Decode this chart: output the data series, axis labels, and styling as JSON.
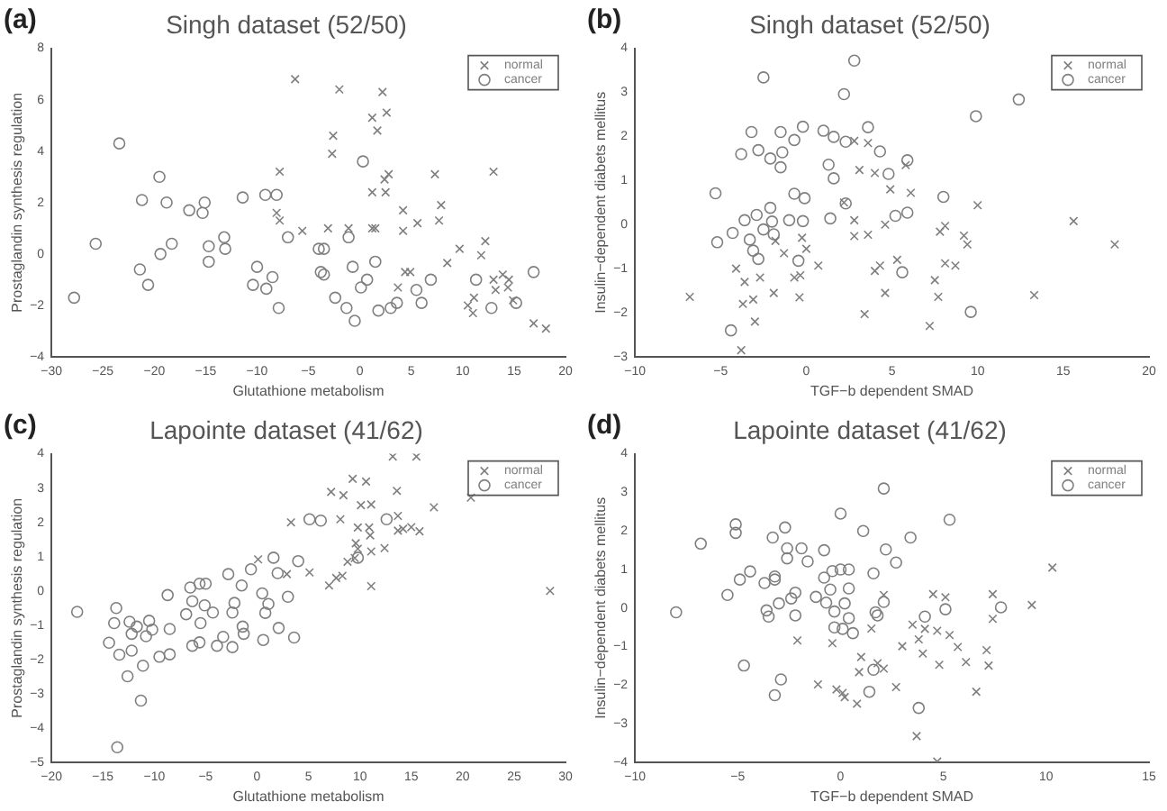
{
  "chart_data": [
    {
      "type": "scatter",
      "title": "Singh dataset (52/50)",
      "xlabel": "Glutathione metabolism",
      "ylabel": "Prostaglandin synthesis regulation",
      "annotations": [
        "(a)"
      ],
      "xlim": [
        -30,
        20
      ],
      "xticks": [
        -30,
        -25,
        -20,
        -15,
        -10,
        -5,
        0,
        5,
        10,
        15,
        20
      ],
      "ylim": [
        -4,
        8
      ],
      "yticks": [
        -4,
        -2,
        0,
        2,
        4,
        6,
        8
      ],
      "legend": "top right",
      "grid": false,
      "series": [
        {
          "name": "normal",
          "color": "#7f7f7f",
          "marker": "cross",
          "x": [
            -6.3,
            -2.0,
            2.2,
            1.2,
            2.6,
            1.7,
            -2.6,
            -2.7,
            -7.8,
            2.8,
            2.4,
            7.3,
            13.0,
            1.2,
            2.5,
            -8.1,
            -7.8,
            -5.6,
            -3.1,
            -1.1,
            1.2,
            1.5,
            4.2,
            4.2,
            5.6,
            7.9,
            7.7,
            9.7,
            12.2,
            11.8,
            8.5,
            4.4,
            4.9,
            3.7,
            13.9,
            13.0,
            14.5,
            13.2,
            14.4,
            14.9,
            10.5,
            11.1,
            11.0,
            16.9,
            18.1
          ],
          "values": [
            6.8,
            6.4,
            6.3,
            5.3,
            5.5,
            4.8,
            4.6,
            3.9,
            3.2,
            3.1,
            2.9,
            3.1,
            3.2,
            2.4,
            2.4,
            1.6,
            1.3,
            0.9,
            1.0,
            1.0,
            1.0,
            1.0,
            1.7,
            0.9,
            1.2,
            1.9,
            1.3,
            0.2,
            0.5,
            -0.05,
            -0.35,
            -0.7,
            -0.7,
            -1.3,
            -0.8,
            -1.0,
            -1.0,
            -1.4,
            -1.3,
            -1.8,
            -2.0,
            -1.7,
            -2.3,
            -2.7,
            -2.9
          ]
        },
        {
          "name": "cancer",
          "color": "#7f7f7f",
          "marker": "circle",
          "x": [
            -27.8,
            -25.7,
            -23.4,
            -21.4,
            -21.2,
            -20.6,
            -19.5,
            -18.8,
            -19.4,
            -18.3,
            -16.6,
            -15.1,
            -15.3,
            -14.7,
            -14.7,
            -13.2,
            -13.1,
            -11.4,
            -10.4,
            -10.0,
            -9.2,
            -9.1,
            -8.5,
            -8.1,
            -7.9,
            -7.0,
            -4.0,
            -3.5,
            -3.8,
            -3.5,
            -2.4,
            -1.3,
            -1.1,
            -0.7,
            -0.5,
            0.1,
            0.7,
            0.3,
            1.5,
            1.8,
            3.0,
            3.6,
            5.5,
            6.0,
            6.9,
            11.3,
            12.8,
            15.2,
            16.9
          ],
          "values": [
            -1.7,
            0.4,
            4.3,
            -0.6,
            2.1,
            -1.2,
            3.0,
            2.0,
            0.0,
            0.4,
            1.7,
            2.0,
            1.6,
            0.3,
            -0.3,
            0.65,
            0.2,
            2.2,
            -1.2,
            -0.5,
            2.3,
            -1.35,
            -0.9,
            2.3,
            -2.1,
            0.65,
            0.2,
            0.2,
            -0.7,
            -0.8,
            -1.7,
            -2.1,
            0.65,
            -0.5,
            -2.6,
            -1.3,
            -1.0,
            3.6,
            -0.3,
            -2.2,
            -2.1,
            -1.9,
            -1.4,
            -1.9,
            -1.0,
            -1.0,
            -2.1,
            -1.9,
            -0.7
          ]
        }
      ]
    },
    {
      "type": "scatter",
      "title": "Singh dataset (52/50)",
      "xlabel": "TGF−b dependent SMAD",
      "ylabel": "Insulin−dependent diabets mellitus",
      "annotations": [
        "(b)"
      ],
      "xlim": [
        -10,
        20
      ],
      "xticks": [
        -10,
        -5,
        0,
        5,
        10,
        15,
        20
      ],
      "ylim": [
        -3,
        4
      ],
      "yticks": [
        -3,
        -2,
        -1,
        0,
        1,
        2,
        3,
        4
      ],
      "legend": "top right",
      "grid": false,
      "series": [
        {
          "name": "normal",
          "color": "#7f7f7f",
          "marker": "cross",
          "x": [
            -6.8,
            -4.1,
            -3.6,
            -3.7,
            -3.8,
            -3.1,
            -3.0,
            -2.7,
            -1.9,
            -1.8,
            -1.3,
            -0.7,
            -0.35,
            -0.25,
            0.0,
            -0.4,
            0.7,
            2.2,
            2.8,
            2.8,
            2.8,
            3.1,
            3.6,
            3.4,
            3.6,
            4.0,
            4.0,
            4.3,
            4.6,
            4.6,
            4.9,
            5.3,
            5.8,
            6.1,
            7.2,
            7.5,
            7.7,
            7.8,
            8.1,
            8.1,
            8.7,
            9.2,
            9.4,
            10.0,
            13.3,
            15.6,
            18.0
          ],
          "values": [
            -1.64,
            -1.0,
            -1.3,
            -1.8,
            -2.85,
            -1.7,
            -2.2,
            -1.2,
            -1.55,
            -0.37,
            -0.65,
            -1.2,
            -1.15,
            -0.3,
            -0.55,
            -1.65,
            -0.93,
            0.5,
            0.1,
            -0.26,
            1.9,
            1.24,
            -0.23,
            -2.03,
            1.85,
            1.17,
            -1.05,
            -0.93,
            0.0,
            -1.55,
            0.8,
            -0.8,
            1.35,
            0.72,
            -2.3,
            -1.26,
            -1.64,
            -0.16,
            -0.03,
            -0.88,
            -0.93,
            -0.25,
            -0.45,
            0.44,
            -1.6,
            0.08,
            -0.45
          ]
        },
        {
          "name": "cancer",
          "color": "#7f7f7f",
          "marker": "circle",
          "x": [
            -5.3,
            -5.2,
            -4.3,
            -4.4,
            -3.8,
            -3.6,
            -3.2,
            -3.3,
            -3.1,
            -2.8,
            -2.8,
            -2.9,
            -2.5,
            -2.5,
            -2.1,
            -2.1,
            -2.0,
            -1.9,
            -1.5,
            -1.4,
            -1.5,
            -1.0,
            -0.7,
            -0.7,
            -0.46,
            -0.2,
            -0.2,
            -0.1,
            1.0,
            1.3,
            1.6,
            1.6,
            1.4,
            2.2,
            2.3,
            2.3,
            2.8,
            3.6,
            4.3,
            4.8,
            5.2,
            5.6,
            5.9,
            5.9,
            8.0,
            9.6,
            9.9,
            12.4
          ],
          "values": [
            0.71,
            -0.4,
            -0.19,
            -2.4,
            1.6,
            0.1,
            2.1,
            -0.34,
            -0.59,
            -0.78,
            1.69,
            0.22,
            3.34,
            -0.11,
            1.5,
            0.38,
            0.07,
            -0.22,
            2.1,
            1.64,
            1.3,
            0.1,
            1.92,
            0.7,
            -0.82,
            0.08,
            2.22,
            0.6,
            2.13,
            1.36,
            1.99,
            1.05,
            0.14,
            2.96,
            0.48,
            1.88,
            3.72,
            2.21,
            1.66,
            1.15,
            0.2,
            -1.08,
            0.27,
            1.46,
            0.63,
            -1.98,
            2.46,
            2.84
          ]
        }
      ]
    },
    {
      "type": "scatter",
      "title": "Lapointe dataset (41/62)",
      "xlabel": "Glutathione metabolism",
      "ylabel": "Prostaglandin synthesis regulation",
      "annotations": [
        "(c)"
      ],
      "xlim": [
        -20,
        30
      ],
      "xticks": [
        -20,
        -15,
        -10,
        -5,
        0,
        5,
        10,
        15,
        20,
        25,
        30
      ],
      "ylim": [
        -5,
        4
      ],
      "yticks": [
        -5,
        -4,
        -3,
        -2,
        -1,
        0,
        1,
        2,
        3,
        4
      ],
      "legend": "top right",
      "grid": false,
      "series": [
        {
          "name": "normal",
          "color": "#7f7f7f",
          "marker": "cross",
          "x": [
            0.1,
            2.9,
            3.3,
            5.1,
            7.0,
            7.2,
            7.7,
            8.3,
            8.4,
            8.8,
            8.1,
            9.3,
            9.5,
            9.6,
            9.8,
            9.8,
            10.1,
            10.6,
            10.9,
            11.0,
            11.1,
            11.1,
            11.1,
            12.4,
            13.2,
            13.6,
            13.7,
            13.7,
            14.2,
            15.0,
            15.5,
            15.8,
            17.2,
            20.8,
            28.5
          ],
          "values": [
            0.92,
            0.49,
            2.0,
            0.54,
            0.16,
            2.89,
            0.38,
            0.44,
            2.79,
            0.85,
            2.09,
            3.27,
            0.96,
            1.39,
            1.85,
            1.23,
            2.5,
            3.19,
            1.85,
            1.62,
            2.52,
            1.15,
            0.14,
            1.25,
            3.92,
            2.92,
            2.19,
            1.76,
            1.81,
            1.86,
            3.92,
            1.74,
            2.44,
            2.72,
            0.0
          ]
        },
        {
          "name": "cancer",
          "color": "#7f7f7f",
          "marker": "circle",
          "x": [
            -17.5,
            -14.4,
            -13.9,
            -13.7,
            -13.4,
            -13.6,
            -12.6,
            -12.4,
            -12.2,
            -12.2,
            -11.7,
            -11.3,
            -11.1,
            -10.8,
            -10.5,
            -10.2,
            -9.5,
            -8.5,
            -8.7,
            -8.5,
            -6.9,
            -6.5,
            -6.3,
            -6.3,
            -5.6,
            -5.6,
            -5.5,
            -5.1,
            -5.0,
            -4.3,
            -3.9,
            -3.3,
            -2.8,
            -2.4,
            -2.4,
            -2.2,
            -1.5,
            -1.4,
            -1.3,
            -0.6,
            0.5,
            0.6,
            0.8,
            1.1,
            1.6,
            2.0,
            2.1,
            3.0,
            3.6,
            4.0,
            5.1,
            6.2,
            12.6,
            9.8
          ],
          "values": [
            -0.61,
            -1.51,
            -0.94,
            -0.5,
            -1.86,
            -4.56,
            -2.49,
            -0.9,
            -1.25,
            -1.74,
            -1.04,
            -3.2,
            -2.18,
            -1.32,
            -0.87,
            -1.13,
            -1.92,
            -1.85,
            -0.12,
            -1.11,
            -0.68,
            0.1,
            -1.6,
            -0.3,
            0.21,
            -1.5,
            -0.94,
            -0.42,
            0.21,
            -0.63,
            -1.6,
            -1.34,
            0.49,
            -1.64,
            -0.63,
            -0.35,
            0.16,
            -1.04,
            -1.25,
            0.63,
            -0.07,
            -1.43,
            -0.64,
            -0.38,
            0.97,
            0.52,
            -1.08,
            -0.17,
            -1.36,
            0.87,
            2.09,
            2.05,
            2.09,
            0.97
          ]
        }
      ]
    },
    {
      "type": "scatter",
      "title": "Lapointe dataset (41/62)",
      "xlabel": "TGF−b dependent SMAD",
      "ylabel": "Insulin−dependent diabets mellitus",
      "annotations": [
        "(d)"
      ],
      "xlim": [
        -10,
        15
      ],
      "xticks": [
        -10,
        -5,
        0,
        5,
        10,
        15
      ],
      "ylim": [
        -4,
        4
      ],
      "yticks": [
        -4,
        -3,
        -2,
        -1,
        0,
        1,
        2,
        3,
        4
      ],
      "legend": "top right",
      "grid": false,
      "series": [
        {
          "name": "normal",
          "color": "#7f7f7f",
          "marker": "cross",
          "x": [
            -2.1,
            -0.4,
            -1.1,
            -0.2,
            0.1,
            0.2,
            0.8,
            0.9,
            1.0,
            1.5,
            1.8,
            2.1,
            2.1,
            2.7,
            3.0,
            3.5,
            3.8,
            3.7,
            4.0,
            4.1,
            4.5,
            4.7,
            4.7,
            4.8,
            5.1,
            5.3,
            5.7,
            6.1,
            6.6,
            7.1,
            7.2,
            7.4,
            7.4,
            9.3,
            10.3
          ],
          "values": [
            -0.84,
            -0.91,
            -1.98,
            -2.11,
            -2.2,
            -2.31,
            -2.48,
            -1.66,
            -1.27,
            -0.53,
            -1.43,
            -1.57,
            0.34,
            -2.05,
            -0.99,
            -0.43,
            -0.81,
            -3.32,
            -1.18,
            -0.54,
            0.36,
            -0.59,
            -3.98,
            -1.47,
            0.28,
            -0.7,
            -1.01,
            -1.4,
            -2.17,
            -1.09,
            -1.49,
            0.36,
            -0.28,
            0.08,
            1.05
          ]
        },
        {
          "name": "cancer",
          "color": "#7f7f7f",
          "marker": "circle",
          "x": [
            -8.0,
            -6.8,
            -5.5,
            -5.1,
            -5.1,
            -4.9,
            -4.7,
            -4.4,
            -3.7,
            -3.6,
            -3.5,
            -3.3,
            -3.2,
            -3.2,
            -3.2,
            -3.0,
            -2.9,
            -2.7,
            -2.6,
            -2.6,
            -2.4,
            -2.2,
            -2.2,
            -1.9,
            -1.6,
            -1.2,
            -0.8,
            -0.8,
            -0.7,
            -0.5,
            -0.4,
            -0.3,
            -0.3,
            0.0,
            0.0,
            0.1,
            0.2,
            0.4,
            0.4,
            0.4,
            0.6,
            1.1,
            1.4,
            1.6,
            1.6,
            1.7,
            1.8,
            2.1,
            2.2,
            2.1,
            2.7,
            3.4,
            3.8,
            4.1,
            5.1,
            5.3,
            7.8
          ],
          "values": [
            -0.11,
            1.67,
            0.34,
            2.17,
            1.95,
            0.74,
            -1.49,
            0.95,
            0.65,
            -0.06,
            -0.22,
            1.83,
            0.82,
            0.74,
            -2.26,
            0.12,
            -1.85,
            2.09,
            1.55,
            1.29,
            0.25,
            0.4,
            -0.19,
            1.55,
            1.21,
            0.29,
            1.5,
            0.79,
            0.14,
            0.48,
            0.96,
            -0.5,
            -0.09,
            2.45,
            1.0,
            -0.54,
            0.12,
            1.0,
            0.51,
            -0.26,
            -0.65,
            2.0,
            -2.17,
            0.9,
            -1.6,
            -0.11,
            -0.19,
            3.1,
            1.52,
            0.16,
            1.18,
            1.83,
            -2.59,
            -0.22,
            -0.03,
            2.29,
            0.02
          ]
        }
      ]
    }
  ]
}
